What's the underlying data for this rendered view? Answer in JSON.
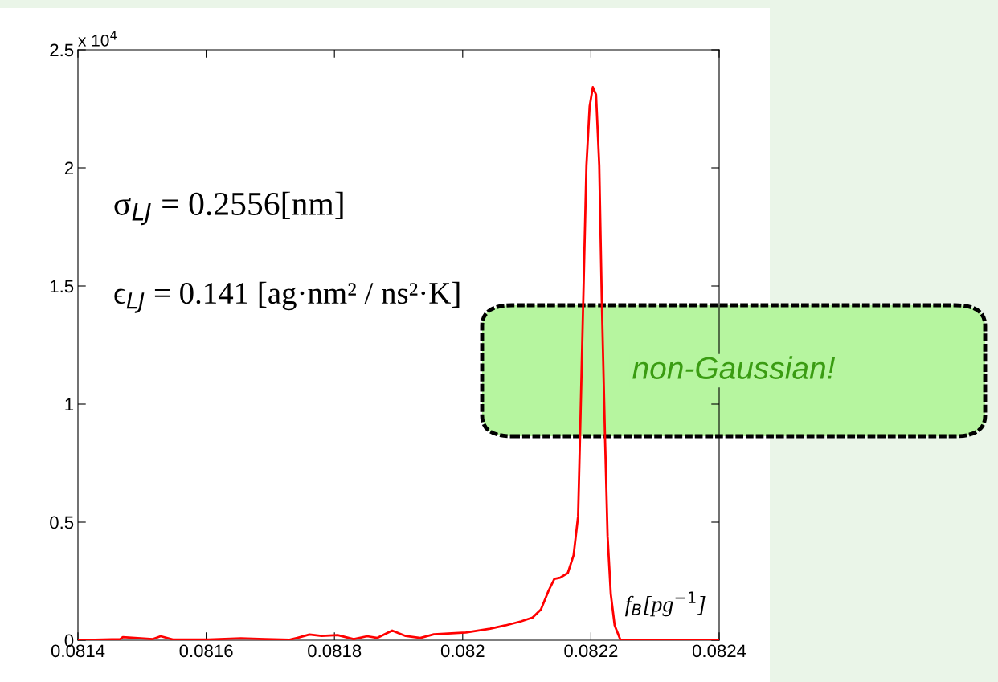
{
  "chart_data": {
    "type": "line",
    "xlabel": "f$_{B}$[pg$^{−1}$]",
    "annotations": [
      "x 10$^{4}$",
      "σ$_{LJ}$ = 0.2556[nm]",
      "ϵ$_{LJ}$ = 0.141 [ag·nm² / ns²·K]",
      "non-Gaussian!"
    ],
    "x": [
      0.0814,
      0.081466,
      0.08147,
      0.081517,
      0.081529,
      0.081548,
      0.081604,
      0.081654,
      0.081692,
      0.08173,
      0.081742,
      0.081761,
      0.08178,
      0.081805,
      0.08183,
      0.081851,
      0.081867,
      0.08189,
      0.081911,
      0.081934,
      0.081955,
      0.082005,
      0.082043,
      0.082067,
      0.082091,
      0.082109,
      0.082122,
      0.082134,
      0.082143,
      0.082152,
      0.082164,
      0.082173,
      0.08218,
      0.082183,
      0.082188,
      0.082193,
      0.082198,
      0.082203,
      0.082208,
      0.082213,
      0.082217,
      0.082222,
      0.082226,
      0.082231,
      0.082237,
      0.082246,
      0.082255,
      0.0824
    ],
    "series": [
      {
        "color": "#ff0000",
        "values": [
          0.0,
          0.005,
          0.013,
          0.005,
          0.017,
          0.003,
          0.003,
          0.008,
          0.005,
          0.002,
          0.01,
          0.024,
          0.018,
          0.022,
          0.005,
          0.017,
          0.01,
          0.041,
          0.018,
          0.01,
          0.025,
          0.033,
          0.049,
          0.063,
          0.08,
          0.096,
          0.13,
          0.21,
          0.26,
          0.265,
          0.285,
          0.36,
          0.525,
          0.857,
          1.434,
          2.01,
          2.26,
          2.342,
          2.31,
          2.01,
          1.434,
          0.857,
          0.44,
          0.195,
          0.063,
          0.002,
          0.0,
          0.0
        ]
      }
    ],
    "xlim": [
      0.0814,
      0.0824
    ],
    "xticks": [
      0.0814,
      0.0816,
      0.0818,
      0.082,
      0.0822,
      0.0824
    ],
    "ylim": [
      0,
      2.5
    ],
    "yticks": [
      0,
      0.5,
      1,
      1.5,
      2,
      2.5
    ],
    "grid": false,
    "legend": false,
    "marker": "none",
    "line_style": "solid"
  }
}
